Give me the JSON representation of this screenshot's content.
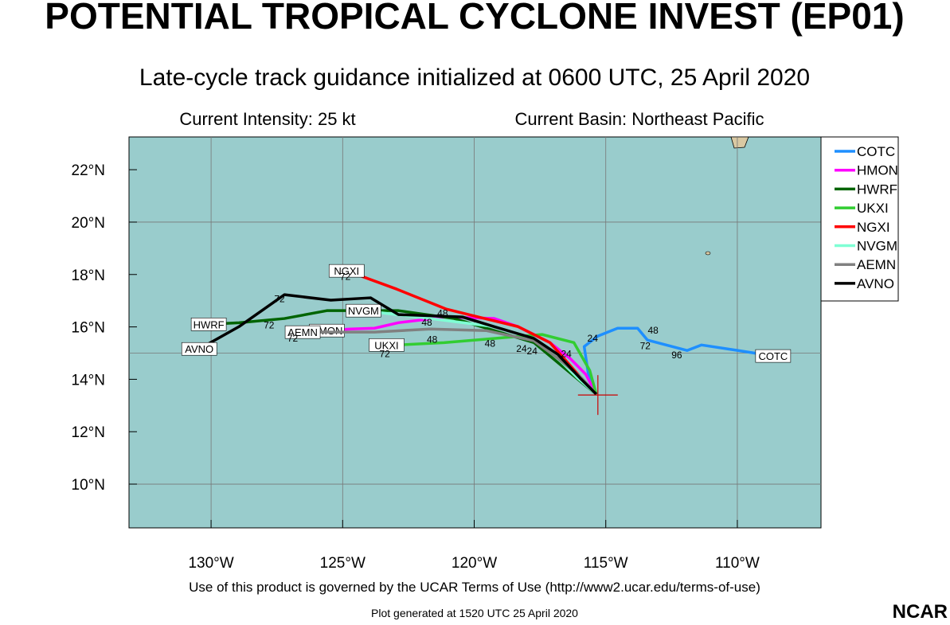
{
  "chart_data": {
    "type": "line",
    "title": "POTENTIAL TROPICAL CYCLONE INVEST (EP01)",
    "subtitle": "Late-cycle track guidance initialized at 0600 UTC, 25 April 2020",
    "intensity_text": "Current Intensity: 25 kt",
    "basin_text": "Current Basin: Northeast Pacific",
    "footer": "Use of this product is governed by the UCAR Terms of Use (http://www2.ucar.edu/terms-of-use)",
    "generated": "Plot generated at 1520 UTC   25 April 2020",
    "logo": "NCAR",
    "xlim": [
      -133.12,
      -106.82
    ],
    "ylim": [
      8.33,
      23.25
    ],
    "xticks": [
      {
        "value": -130,
        "label": "130°W"
      },
      {
        "value": -125,
        "label": "125°W"
      },
      {
        "value": -120,
        "label": "120°W"
      },
      {
        "value": -115,
        "label": "115°W"
      },
      {
        "value": -110,
        "label": "110°W"
      }
    ],
    "yticks": [
      {
        "value": 10,
        "label": "10°N"
      },
      {
        "value": 12,
        "label": "12°N"
      },
      {
        "value": 14,
        "label": "14°N"
      },
      {
        "value": 16,
        "label": "16°N"
      },
      {
        "value": 18,
        "label": "18°N"
      },
      {
        "value": 20,
        "label": "20°N"
      },
      {
        "value": 22,
        "label": "22°N"
      }
    ],
    "xgrid": [
      -130,
      -125,
      -120,
      -115,
      -110
    ],
    "ygrid": [
      10,
      15,
      20
    ],
    "current_position": {
      "x": -115.3,
      "y": 13.4
    },
    "series": [
      {
        "name": "COTC",
        "color": "#1e8fff",
        "x": [
          -115.36,
          -115.67,
          -115.82,
          -115.3,
          -114.55,
          -113.79,
          -113.42,
          -111.91,
          -111.36,
          -109.97,
          -108.64
        ],
        "values": [
          13.43,
          14.25,
          15.25,
          15.65,
          15.95,
          15.95,
          15.5,
          15.1,
          15.31,
          15.1,
          14.89
        ]
      },
      {
        "name": "HMON",
        "color": "#ff00ff",
        "x": [
          -115.36,
          -115.76,
          -116.36,
          -117.12,
          -118.33,
          -119.24,
          -121.06,
          -122.88,
          -123.79,
          -124.7,
          -125.6
        ],
        "values": [
          13.43,
          14.19,
          14.8,
          15.4,
          16.01,
          16.32,
          16.38,
          16.16,
          15.95,
          15.92,
          15.86
        ]
      },
      {
        "name": "HWRF",
        "color": "#006400",
        "x": [
          -115.36,
          -115.91,
          -116.82,
          -117.73,
          -119.24,
          -120.76,
          -122.88,
          -125.6,
          -127.21,
          -128.94,
          -130.09
        ],
        "values": [
          13.43,
          13.88,
          14.64,
          15.4,
          15.86,
          16.32,
          16.62,
          16.62,
          16.32,
          16.16,
          16.1
        ]
      },
      {
        "name": "UKXI",
        "color": "#32cd32",
        "x": [
          -115.36,
          -115.61,
          -116.21,
          -117.42,
          -119.24,
          -121.15,
          -122.88,
          -123.33
        ],
        "values": [
          13.43,
          14.34,
          15.4,
          15.71,
          15.56,
          15.4,
          15.31,
          15.31
        ]
      },
      {
        "name": "NGXI",
        "color": "#ff0000",
        "x": [
          -115.36,
          -116.06,
          -117.12,
          -118.33,
          -119.85,
          -121.06,
          -122.94,
          -124.85
        ],
        "values": [
          13.43,
          14.19,
          15.4,
          16.01,
          16.38,
          16.68,
          17.44,
          18.14
        ]
      },
      {
        "name": "NVGM",
        "color": "#7fffd4",
        "x": [
          -115.36,
          -116.06,
          -116.82,
          -117.73,
          -119.24,
          -121.67,
          -124.21
        ],
        "values": [
          13.43,
          14.04,
          14.8,
          15.56,
          16.01,
          16.32,
          16.62
        ]
      },
      {
        "name": "AEMN",
        "color": "#808080",
        "x": [
          -115.36,
          -115.91,
          -116.82,
          -117.73,
          -119.55,
          -121.67,
          -123.79,
          -126.52
        ],
        "values": [
          13.43,
          14.04,
          14.8,
          15.47,
          15.86,
          15.92,
          15.8,
          15.8
        ]
      },
      {
        "name": "AVNO",
        "color": "#000000",
        "x": [
          -115.36,
          -115.97,
          -116.82,
          -117.73,
          -119.24,
          -120.45,
          -122.88,
          -123.94,
          -125.45,
          -127.21,
          -128.94,
          -130.45
        ],
        "values": [
          13.43,
          14.04,
          14.95,
          15.56,
          16.01,
          16.38,
          16.47,
          17.11,
          17.02,
          17.23,
          16.01,
          15.16
        ]
      }
    ],
    "hour_labels": [
      {
        "label": 24,
        "x": -115.5,
        "y": 15.6
      },
      {
        "label": 48,
        "x": -113.2,
        "y": 15.9
      },
      {
        "label": 72,
        "x": -113.5,
        "y": 15.3
      },
      {
        "label": 96,
        "x": -112.3,
        "y": 14.95
      },
      {
        "label": 24,
        "x": -116.5,
        "y": 15.0
      },
      {
        "label": 24,
        "x": -118.2,
        "y": 15.2
      },
      {
        "label": 24,
        "x": -117.8,
        "y": 15.1
      },
      {
        "label": 48,
        "x": -119.4,
        "y": 15.4
      },
      {
        "label": 48,
        "x": -121.6,
        "y": 15.55
      },
      {
        "label": 48,
        "x": -121.8,
        "y": 16.2
      },
      {
        "label": 48,
        "x": -121.2,
        "y": 16.55
      },
      {
        "label": 72,
        "x": -127.4,
        "y": 17.1
      },
      {
        "label": 72,
        "x": -127.8,
        "y": 16.1
      },
      {
        "label": 72,
        "x": -126.9,
        "y": 15.6
      },
      {
        "label": 72,
        "x": -123.4,
        "y": 15.0
      },
      {
        "label": 72,
        "x": -124.9,
        "y": 17.95
      }
    ]
  }
}
